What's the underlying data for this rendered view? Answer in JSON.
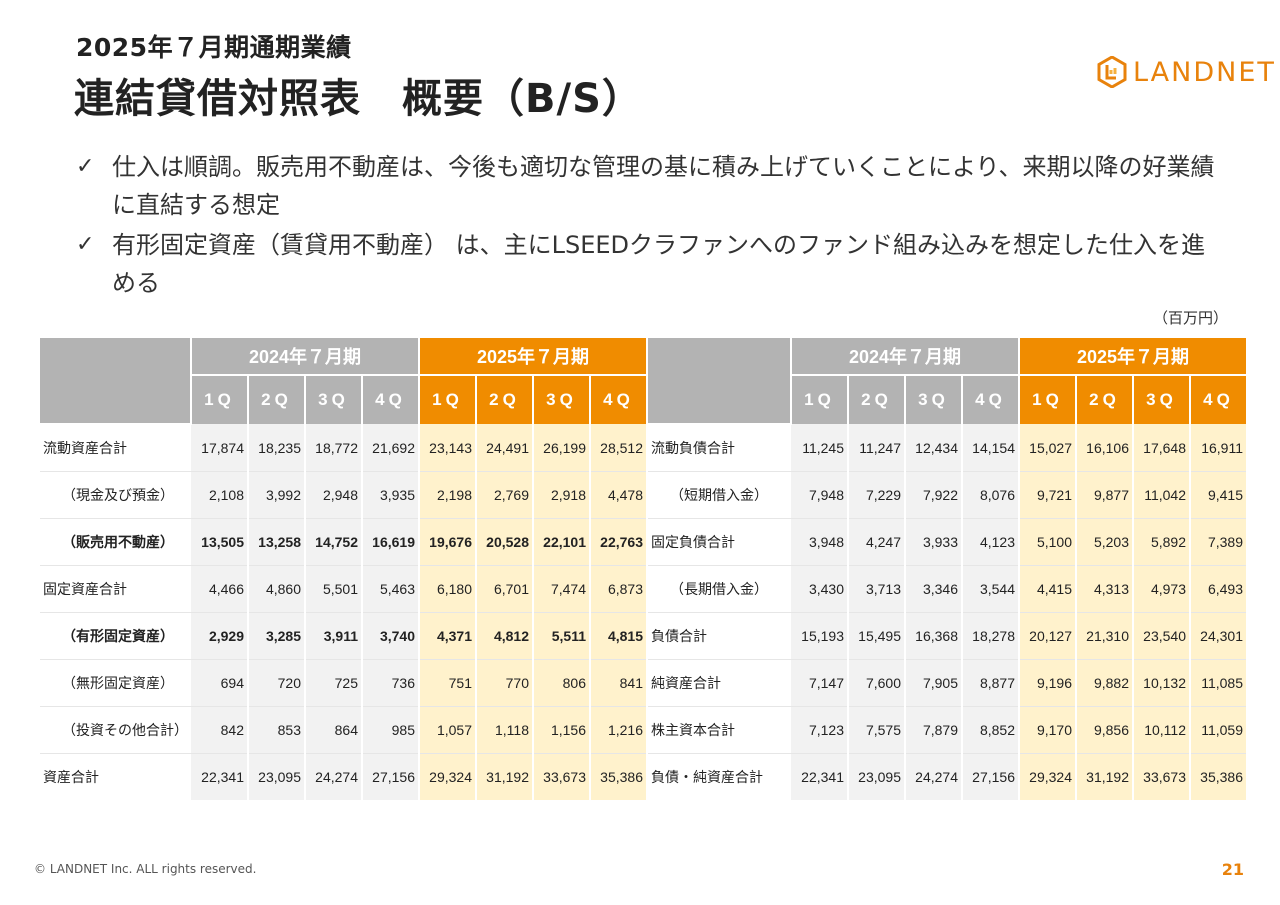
{
  "header": {
    "subtitle": "2025年７月期通期業績",
    "title": "連結貸借対照表　概要（B/S）"
  },
  "logo": {
    "text": "LANDNET",
    "icon": "landnet-logo-icon",
    "color": "#e8820c"
  },
  "bullets": [
    {
      "icon": "check-icon",
      "text": "仕入は順調。販売用不動産は、今後も適切な管理の基に積み上げていくことにより、来期以降の好業績に直結する想定"
    },
    {
      "icon": "check-icon",
      "text": "有形固定資産（賃貸用不動産） は、主にLSEEDクラファンへのファンド組み込みを想定した仕入を進める"
    }
  ],
  "unit_label": "（百万円）",
  "table": {
    "period_2024": "2024年７月期",
    "period_2025": "2025年７月期",
    "quarters": [
      "1Q",
      "2Q",
      "3Q",
      "4Q"
    ],
    "colors": {
      "gray_header": "#b3b3b3",
      "orange_header": "#f08c00",
      "cell_2024": "#f2f2f2",
      "cell_2025": "#fff2cc"
    },
    "rows": [
      {
        "left_label": "流動資産合計",
        "left_bold": false,
        "left_indent": false,
        "left": [
          "17,874",
          "18,235",
          "18,772",
          "21,692",
          "23,143",
          "24,491",
          "26,199",
          "28,512"
        ],
        "right_label": "流動負債合計",
        "right_indent": false,
        "right": [
          "11,245",
          "11,247",
          "12,434",
          "14,154",
          "15,027",
          "16,106",
          "17,648",
          "16,911"
        ]
      },
      {
        "left_label": "（現金及び預金）",
        "left_bold": false,
        "left_indent": true,
        "left": [
          "2,108",
          "3,992",
          "2,948",
          "3,935",
          "2,198",
          "2,769",
          "2,918",
          "4,478"
        ],
        "right_label": "（短期借入金）",
        "right_indent": true,
        "right": [
          "7,948",
          "7,229",
          "7,922",
          "8,076",
          "9,721",
          "9,877",
          "11,042",
          "9,415"
        ]
      },
      {
        "left_label": "（販売用不動産）",
        "left_bold": true,
        "left_indent": true,
        "left": [
          "13,505",
          "13,258",
          "14,752",
          "16,619",
          "19,676",
          "20,528",
          "22,101",
          "22,763"
        ],
        "right_label": "固定負債合計",
        "right_indent": false,
        "right": [
          "3,948",
          "4,247",
          "3,933",
          "4,123",
          "5,100",
          "5,203",
          "5,892",
          "7,389"
        ]
      },
      {
        "left_label": "固定資産合計",
        "left_bold": false,
        "left_indent": false,
        "left": [
          "4,466",
          "4,860",
          "5,501",
          "5,463",
          "6,180",
          "6,701",
          "7,474",
          "6,873"
        ],
        "right_label": "（長期借入金）",
        "right_indent": true,
        "right": [
          "3,430",
          "3,713",
          "3,346",
          "3,544",
          "4,415",
          "4,313",
          "4,973",
          "6,493"
        ]
      },
      {
        "left_label": "（有形固定資産）",
        "left_bold": true,
        "left_indent": true,
        "left": [
          "2,929",
          "3,285",
          "3,911",
          "3,740",
          "4,371",
          "4,812",
          "5,511",
          "4,815"
        ],
        "right_label": "負債合計",
        "right_indent": false,
        "right": [
          "15,193",
          "15,495",
          "16,368",
          "18,278",
          "20,127",
          "21,310",
          "23,540",
          "24,301"
        ]
      },
      {
        "left_label": "（無形固定資産）",
        "left_bold": false,
        "left_indent": true,
        "left": [
          "694",
          "720",
          "725",
          "736",
          "751",
          "770",
          "806",
          "841"
        ],
        "right_label": "純資産合計",
        "right_indent": false,
        "right": [
          "7,147",
          "7,600",
          "7,905",
          "8,877",
          "9,196",
          "9,882",
          "10,132",
          "11,085"
        ]
      },
      {
        "left_label": "（投資その他合計）",
        "left_bold": false,
        "left_indent": true,
        "left": [
          "842",
          "853",
          "864",
          "985",
          "1,057",
          "1,118",
          "1,156",
          "1,216"
        ],
        "right_label": "株主資本合計",
        "right_indent": false,
        "right": [
          "7,123",
          "7,575",
          "7,879",
          "8,852",
          "9,170",
          "9,856",
          "10,112",
          "11,059"
        ]
      },
      {
        "left_label": "資産合計",
        "left_bold": false,
        "left_indent": false,
        "left": [
          "22,341",
          "23,095",
          "24,274",
          "27,156",
          "29,324",
          "31,192",
          "33,673",
          "35,386"
        ],
        "right_label": "負債・純資産合計",
        "right_indent": false,
        "right": [
          "22,341",
          "23,095",
          "24,274",
          "27,156",
          "29,324",
          "31,192",
          "33,673",
          "35,386"
        ]
      }
    ]
  },
  "footer": {
    "copyright": "© LANDNET Inc. ALL rights reserved.",
    "page_number": "21",
    "page_number_color": "#e8820c"
  }
}
